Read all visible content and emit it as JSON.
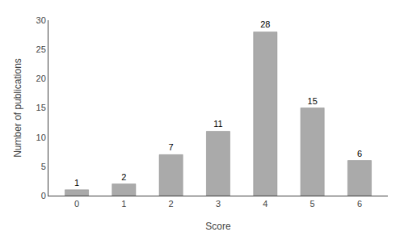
{
  "chart_data": {
    "type": "bar",
    "xlabel": "Score",
    "ylabel": "Number of publications",
    "categories": [
      0,
      1,
      2,
      3,
      4,
      5,
      6
    ],
    "values": [
      1,
      2,
      7,
      11,
      28,
      15,
      6
    ],
    "color": "#aaaaaa",
    "ylim": [
      0,
      30
    ],
    "yticks": [
      0,
      5,
      10,
      15,
      20,
      25,
      30
    ],
    "data_labels": true,
    "grid": false
  }
}
